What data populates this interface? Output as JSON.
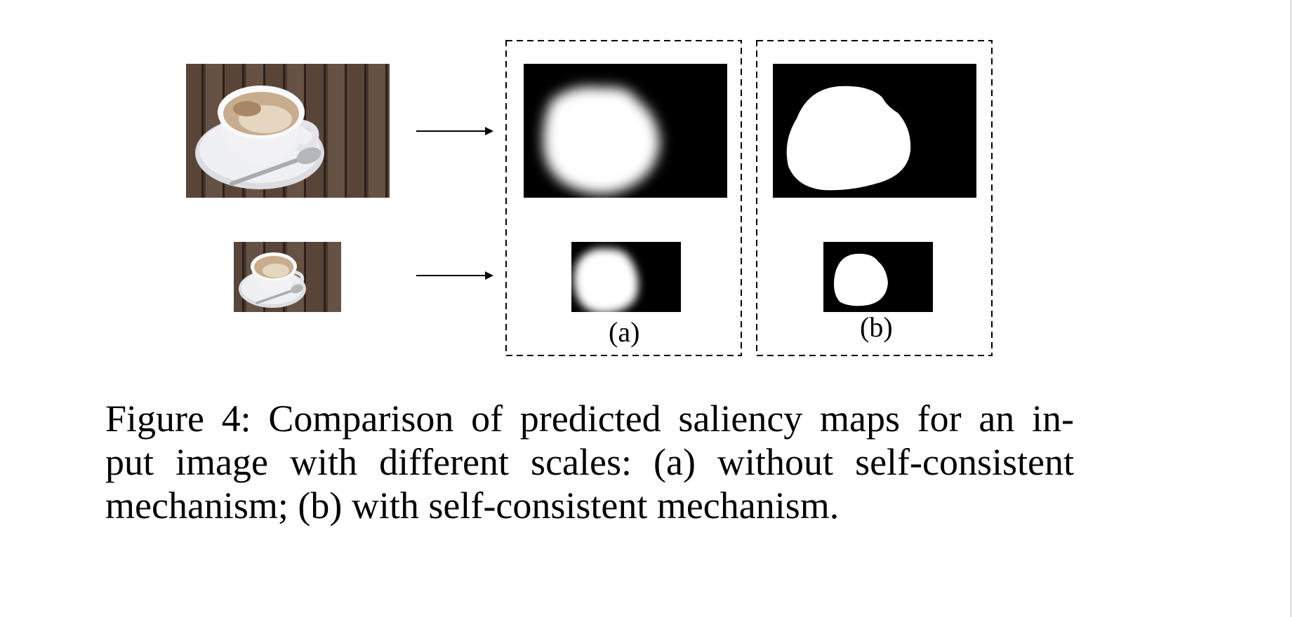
{
  "figure": {
    "rows": [
      {
        "scale": "large",
        "input_image": "coffee-cup-photo",
        "map_a": "blurred-saliency-map",
        "map_b": "sharp-saliency-map"
      },
      {
        "scale": "small",
        "input_image": "coffee-cup-photo",
        "map_a": "blurred-saliency-map",
        "map_b": "sharp-saliency-map"
      }
    ],
    "panel_a_label": "(a)",
    "panel_b_label": "(b)",
    "colors": {
      "saliency_background": "#000000",
      "saliency_foreground": "#ffffff",
      "wood": "#5a4638",
      "cup": "#eeeeef",
      "coffee_stain": "#b79a78"
    }
  },
  "caption": {
    "lines": [
      "Figure 4: Comparison of predicted saliency maps for an in-",
      "put image with different scales: (a) without self-consistent",
      "mechanism; (b) with self-consistent mechanism."
    ]
  }
}
